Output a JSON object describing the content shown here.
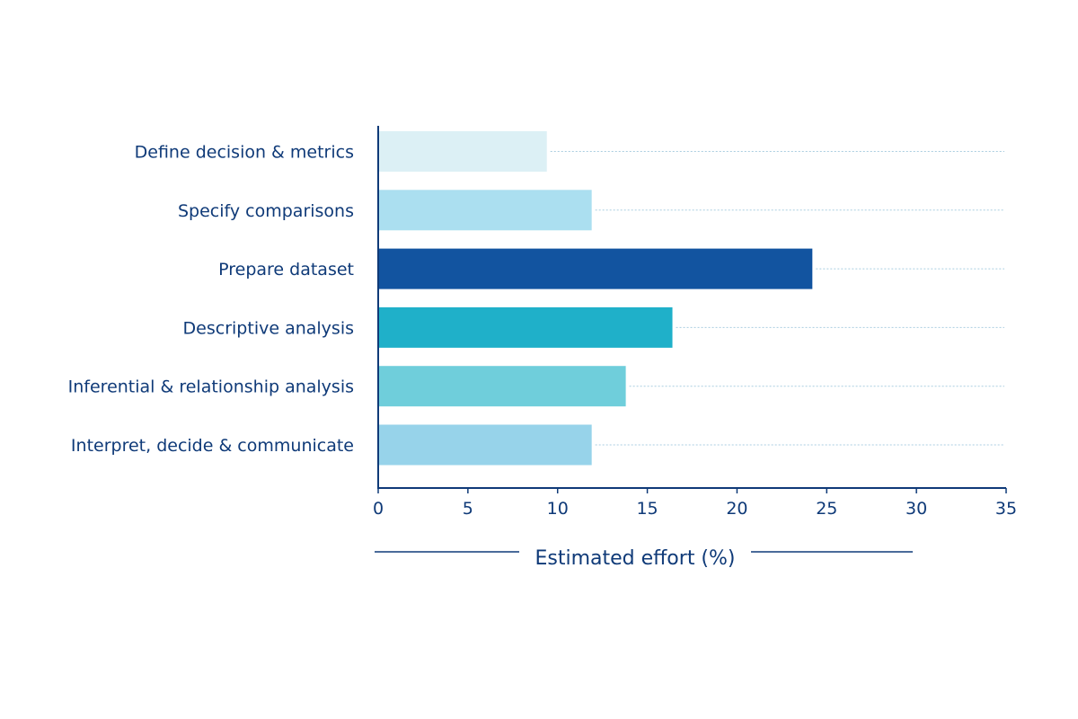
{
  "chart_data": {
    "type": "bar",
    "orientation": "horizontal",
    "title": "",
    "xlabel": "Estimated effort (%)",
    "ylabel": "",
    "xlim": [
      0,
      35
    ],
    "xticks": [
      0,
      5,
      10,
      15,
      20,
      25,
      30,
      35
    ],
    "grid": "dotted horizontal lines per category",
    "legend": "none",
    "categories": [
      "Define decision & metrics",
      "Specify comparisons",
      "Prepare dataset",
      "Descriptive analysis",
      "Inferential & relationship analysis",
      "Interpret, decide & communicate"
    ],
    "values": [
      9.4,
      11.9,
      24.2,
      16.4,
      13.8,
      11.9
    ],
    "colors": [
      "#dcf0f5",
      "#abdff0",
      "#1254a0",
      "#1fb0c9",
      "#6fcedb",
      "#97d3ea"
    ],
    "text_color": "#0f3a78"
  }
}
